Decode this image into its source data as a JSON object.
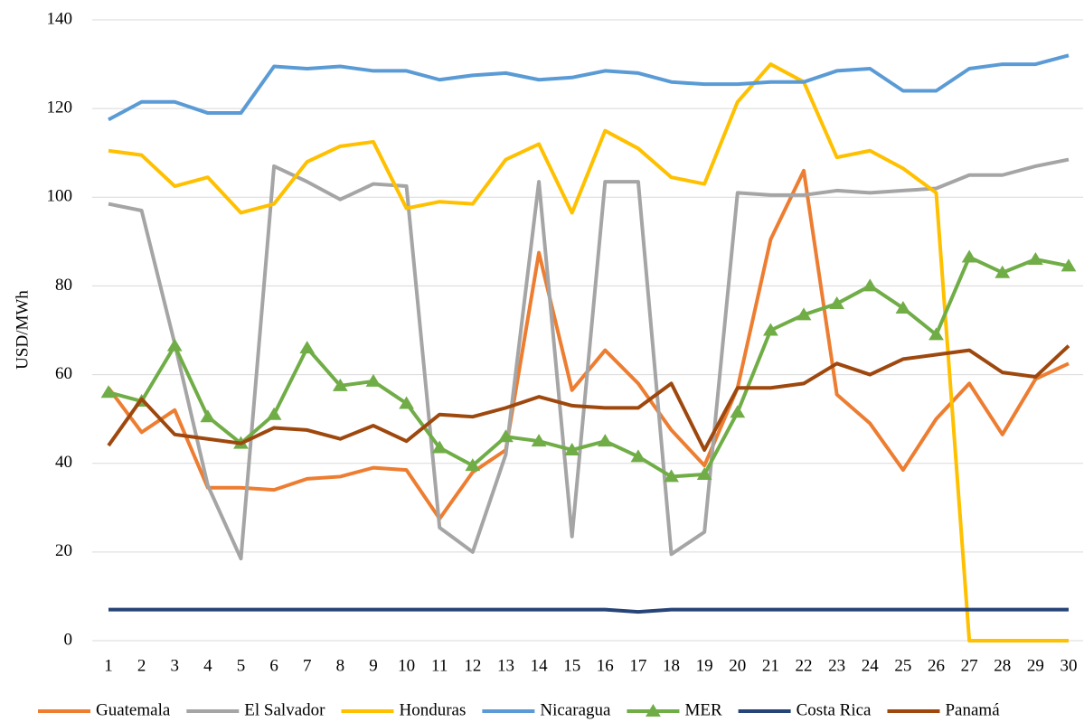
{
  "chart_data": {
    "type": "line",
    "y_label": "USD/MWh",
    "categories": [
      "1",
      "2",
      "3",
      "4",
      "5",
      "6",
      "7",
      "8",
      "9",
      "10",
      "11",
      "12",
      "13",
      "14",
      "15",
      "16",
      "17",
      "18",
      "19",
      "20",
      "21",
      "22",
      "23",
      "24",
      "25",
      "26",
      "27",
      "28",
      "29",
      "30"
    ],
    "ylim": [
      0,
      140
    ],
    "yticks": [
      0,
      20,
      40,
      60,
      80,
      100,
      120,
      140
    ],
    "grid": true,
    "legend": "bottom",
    "series": [
      {
        "name": "Guatemala",
        "color": "#ed7d31",
        "values": [
          57,
          47,
          52,
          34.5,
          34.5,
          34,
          36.5,
          37,
          39,
          38.5,
          27.5,
          38,
          43,
          87.5,
          56.5,
          65.5,
          58,
          47.5,
          39.5,
          57,
          90.5,
          106,
          55.5,
          49,
          38.5,
          50,
          58,
          46.5,
          59,
          62.5
        ]
      },
      {
        "name": "El Salvador",
        "color": "#a5a5a5",
        "values": [
          98.5,
          97,
          67,
          35,
          18.5,
          107,
          103.5,
          99.5,
          103,
          102.5,
          25.5,
          20,
          42,
          103.5,
          23.5,
          103.5,
          103.5,
          19.5,
          24.5,
          101,
          100.5,
          100.5,
          101.5,
          101,
          101.5,
          102,
          105,
          105,
          107,
          108.5
        ]
      },
      {
        "name": "Honduras",
        "color": "#ffc000",
        "values": [
          110.5,
          109.5,
          102.5,
          104.5,
          96.5,
          98.5,
          108,
          111.5,
          112.5,
          97.5,
          99,
          98.5,
          108.5,
          112,
          96.5,
          115,
          111,
          104.5,
          103,
          121.5,
          130,
          126,
          109,
          110.5,
          106.5,
          101,
          0,
          0,
          0,
          0
        ]
      },
      {
        "name": "Nicaragua",
        "color": "#5b9bd5",
        "values": [
          117.5,
          121.5,
          121.5,
          119,
          119,
          129.5,
          129,
          129.5,
          128.5,
          128.5,
          126.5,
          127.5,
          128,
          126.5,
          127,
          128.5,
          128,
          126,
          125.5,
          125.5,
          126,
          126,
          128.5,
          129,
          124,
          124,
          129,
          130,
          130,
          132
        ]
      },
      {
        "name": "MER",
        "color": "#70ad47",
        "marker": "triangle",
        "values": [
          56,
          54,
          66.5,
          50.5,
          44.5,
          51,
          66,
          57.5,
          58.5,
          53.5,
          43.5,
          39.5,
          46,
          45,
          43,
          45,
          41.5,
          37,
          37.5,
          51.5,
          70,
          73.5,
          76,
          80,
          75,
          69,
          86.5,
          83,
          86,
          84.5
        ]
      },
      {
        "name": "Costa Rica",
        "color": "#264478",
        "values": [
          7,
          7,
          7,
          7,
          7,
          7,
          7,
          7,
          7,
          7,
          7,
          7,
          7,
          7,
          7,
          7,
          6.5,
          7,
          7,
          7,
          7,
          7,
          7,
          7,
          7,
          7,
          7,
          7,
          7,
          7
        ]
      },
      {
        "name": "Panamá",
        "color": "#9e480e",
        "values": [
          44,
          54.5,
          46.5,
          45.5,
          44.5,
          48,
          47.5,
          45.5,
          48.5,
          45,
          51,
          50.5,
          52.5,
          55,
          53,
          52.5,
          52.5,
          58,
          43,
          57,
          57,
          58,
          62.5,
          60,
          63.5,
          64.5,
          65.5,
          60.5,
          59.5,
          66.5
        ]
      }
    ]
  }
}
